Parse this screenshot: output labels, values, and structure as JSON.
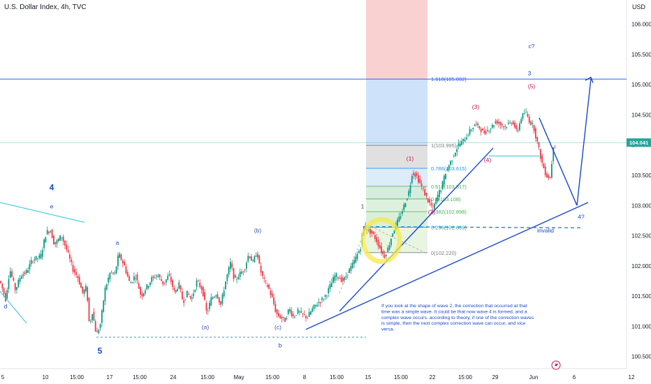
{
  "header": {
    "symbol": "U.S. Dollar Index, 4h, TVC",
    "currency": "USD"
  },
  "colors": {
    "up": "#089981",
    "down": "#f23645",
    "price_line": "#26a69a",
    "wave_blue": "#1848cc",
    "wave_red": "#c2185b",
    "hline": "#2962ff"
  },
  "chart_data": {
    "type": "candlestick",
    "title": "U.S. Dollar Index, 4h, TVC",
    "ylabel": "USD",
    "ylim": [
      100.3,
      106.4
    ],
    "y_ticks": [
      "106.000",
      "105.500",
      "105.000",
      "104.500",
      "104.000",
      "103.500",
      "103.000",
      "102.500",
      "102.000",
      "101.500",
      "101.000",
      "100.500"
    ],
    "x_ticks": [
      {
        "label": "5",
        "i": 4
      },
      {
        "label": "10",
        "i": 65
      },
      {
        "label": "15:00",
        "i": 110
      },
      {
        "label": "17",
        "i": 157
      },
      {
        "label": "15:00",
        "i": 200
      },
      {
        "label": "24",
        "i": 248
      },
      {
        "label": "15:00",
        "i": 297
      },
      {
        "label": "May",
        "i": 342
      },
      {
        "label": "15:00",
        "i": 390
      },
      {
        "label": "8",
        "i": 436
      },
      {
        "label": "15:00",
        "i": 482
      },
      {
        "label": "15",
        "i": 527
      },
      {
        "label": "15:00",
        "i": 574
      },
      {
        "label": "22",
        "i": 619
      },
      {
        "label": "15:00",
        "i": 666
      },
      {
        "label": "29",
        "i": 709
      },
      {
        "label": "Jun",
        "i": 764
      },
      {
        "label": "6",
        "i": 822
      },
      {
        "label": "12",
        "i": 904
      }
    ],
    "last_price": 104.041,
    "last_price_label": "104.041",
    "price_path": [
      [
        0,
        101.75
      ],
      [
        8,
        101.45
      ],
      [
        14,
        101.95
      ],
      [
        22,
        101.6
      ],
      [
        30,
        101.85
      ],
      [
        38,
        101.9
      ],
      [
        46,
        102.1
      ],
      [
        58,
        102.15
      ],
      [
        66,
        102.55
      ],
      [
        72,
        102.6
      ],
      [
        78,
        102.35
      ],
      [
        88,
        102.5
      ],
      [
        96,
        102.25
      ],
      [
        104,
        101.95
      ],
      [
        112,
        101.8
      ],
      [
        118,
        101.55
      ],
      [
        124,
        101.65
      ],
      [
        128,
        101.0
      ],
      [
        132,
        101.25
      ],
      [
        138,
        100.85
      ],
      [
        144,
        101.05
      ],
      [
        150,
        101.6
      ],
      [
        158,
        101.9
      ],
      [
        164,
        101.85
      ],
      [
        170,
        102.2
      ],
      [
        178,
        102.0
      ],
      [
        186,
        101.7
      ],
      [
        194,
        101.85
      ],
      [
        202,
        101.5
      ],
      [
        210,
        101.65
      ],
      [
        218,
        101.8
      ],
      [
        226,
        101.85
      ],
      [
        234,
        101.7
      ],
      [
        242,
        101.85
      ],
      [
        250,
        101.55
      ],
      [
        256,
        101.7
      ],
      [
        262,
        101.4
      ],
      [
        268,
        101.55
      ],
      [
        274,
        101.45
      ],
      [
        282,
        101.75
      ],
      [
        290,
        101.6
      ],
      [
        296,
        101.2
      ],
      [
        302,
        101.45
      ],
      [
        310,
        101.55
      ],
      [
        316,
        101.35
      ],
      [
        322,
        101.7
      ],
      [
        330,
        102.05
      ],
      [
        336,
        101.75
      ],
      [
        342,
        101.85
      ],
      [
        350,
        101.95
      ],
      [
        356,
        102.2
      ],
      [
        362,
        102.05
      ],
      [
        368,
        102.25
      ],
      [
        372,
        101.95
      ],
      [
        378,
        101.75
      ],
      [
        384,
        101.65
      ],
      [
        390,
        101.45
      ],
      [
        396,
        101.2
      ],
      [
        402,
        101.15
      ],
      [
        408,
        101.1
      ],
      [
        414,
        101.3
      ],
      [
        420,
        101.15
      ],
      [
        426,
        101.25
      ],
      [
        432,
        101.2
      ],
      [
        440,
        101.15
      ],
      [
        448,
        101.3
      ],
      [
        456,
        101.4
      ],
      [
        462,
        101.45
      ],
      [
        468,
        101.55
      ],
      [
        474,
        101.7
      ],
      [
        480,
        101.85
      ],
      [
        486,
        101.8
      ],
      [
        492,
        101.75
      ],
      [
        498,
        101.9
      ],
      [
        504,
        102.0
      ],
      [
        510,
        102.15
      ],
      [
        516,
        102.3
      ],
      [
        520,
        102.65
      ],
      [
        526,
        102.6
      ],
      [
        532,
        102.55
      ],
      [
        538,
        102.45
      ],
      [
        544,
        102.3
      ],
      [
        550,
        102.15
      ],
      [
        556,
        102.3
      ],
      [
        562,
        102.55
      ],
      [
        568,
        102.7
      ],
      [
        574,
        102.85
      ],
      [
        580,
        103.05
      ],
      [
        586,
        103.25
      ],
      [
        590,
        103.55
      ],
      [
        596,
        103.5
      ],
      [
        602,
        103.35
      ],
      [
        608,
        103.2
      ],
      [
        614,
        103.05
      ],
      [
        620,
        102.95
      ],
      [
        626,
        103.15
      ],
      [
        632,
        103.3
      ],
      [
        638,
        103.55
      ],
      [
        644,
        103.7
      ],
      [
        650,
        103.85
      ],
      [
        656,
        104.0
      ],
      [
        662,
        104.05
      ],
      [
        668,
        104.15
      ],
      [
        674,
        104.25
      ],
      [
        680,
        104.35
      ],
      [
        686,
        104.3
      ],
      [
        692,
        104.2
      ],
      [
        698,
        104.25
      ],
      [
        704,
        104.3
      ],
      [
        710,
        104.4
      ],
      [
        716,
        104.35
      ],
      [
        722,
        104.3
      ],
      [
        728,
        104.35
      ],
      [
        734,
        104.4
      ],
      [
        740,
        104.2
      ],
      [
        746,
        104.45
      ],
      [
        752,
        104.55
      ],
      [
        758,
        104.4
      ],
      [
        764,
        104.3
      ],
      [
        770,
        104.0
      ],
      [
        776,
        103.7
      ],
      [
        782,
        103.5
      ],
      [
        788,
        103.45
      ],
      [
        792,
        104.0
      ],
      [
        796,
        104.04
      ]
    ],
    "fibonacci": [
      {
        "label": "1.618(105.092)",
        "value": 105.092
      },
      {
        "label": "1(103.995)",
        "value": 103.995
      },
      {
        "label": "0.786(103.615)",
        "value": 103.615
      },
      {
        "label": "0.618(103.317)",
        "value": 103.317
      },
      {
        "label": "0.5(103.108)",
        "value": 103.108
      },
      {
        "label": "0.382(102.898)",
        "value": 102.898
      },
      {
        "label": "0.236(102.639)",
        "value": 102.639
      },
      {
        "label": "0(102.220)",
        "value": 102.22
      }
    ],
    "wave_labels": [
      {
        "text": "4",
        "i": 74,
        "v": 103.25,
        "color": "blue",
        "size": "big"
      },
      {
        "text": "e",
        "i": 74,
        "v": 102.95,
        "color": "blue"
      },
      {
        "text": "d",
        "i": 8,
        "v": 101.3,
        "color": "blue"
      },
      {
        "text": "5",
        "i": 143,
        "v": 100.55,
        "color": "blue",
        "size": "big"
      },
      {
        "text": "a",
        "i": 168,
        "v": 102.35,
        "color": "blue"
      },
      {
        "text": "(a)",
        "i": 294,
        "v": 100.95,
        "color": "navy"
      },
      {
        "text": "(b)",
        "i": 369,
        "v": 102.55,
        "color": "navy"
      },
      {
        "text": "(c)",
        "i": 398,
        "v": 100.95,
        "color": "navy"
      },
      {
        "text": "b",
        "i": 401,
        "v": 100.65,
        "color": "blue"
      },
      {
        "text": "1",
        "i": 519,
        "v": 102.95,
        "color": "blue"
      },
      {
        "text": "(1)",
        "i": 587,
        "v": 103.74,
        "color": "red"
      },
      {
        "text": "(2)",
        "i": 618,
        "v": 102.86,
        "color": "red"
      },
      {
        "text": "(3)",
        "i": 681,
        "v": 104.6,
        "color": "red"
      },
      {
        "text": "(4)",
        "i": 698,
        "v": 103.72,
        "color": "red"
      },
      {
        "text": "(5)",
        "i": 761,
        "v": 104.94,
        "color": "red"
      },
      {
        "text": "3",
        "i": 758,
        "v": 105.15,
        "color": "blue"
      },
      {
        "text": "c?",
        "i": 761,
        "v": 105.6,
        "color": "blue"
      },
      {
        "text": "4?",
        "i": 832,
        "v": 102.78,
        "color": "blue"
      },
      {
        "text": "invalid",
        "i": 781,
        "v": 102.55,
        "color": "blue"
      }
    ],
    "annotation": "If you look at the shape of wave 2, the correction that occurred at that time was a simple wave.  It could be that now wave 4 is formed, and a complex wave occurs. according to theory, if one of the correction waves is simple, then the next complex correction wave can occur, and vice versa."
  }
}
